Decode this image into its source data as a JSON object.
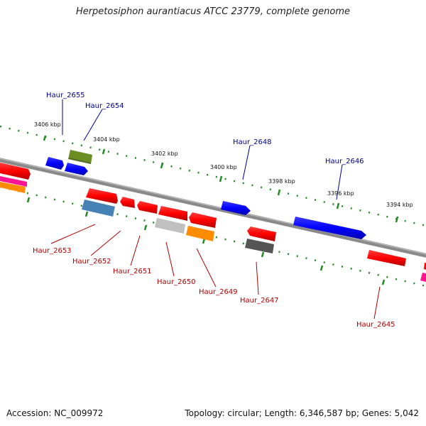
{
  "title": "Herpetosiphon aurantiacus ATCC 23779, complete genome",
  "footer": {
    "accession": "Accession: NC_009972",
    "info": "Topology: circular; Length: 6,346,587 bp; Genes: 5,042"
  },
  "scale": {
    "labels": [
      "3406 kbp",
      "3404 kbp",
      "3402 kbp",
      "3400 kbp",
      "3398 kbp",
      "3396 kbp",
      "3394 kbp"
    ]
  },
  "genes_forward": [
    {
      "name": "Haur_2655",
      "color": "#0000ff"
    },
    {
      "name": "Haur_2654",
      "color": "#0000ff"
    },
    {
      "name": "Haur_2648",
      "color": "#0000ff"
    },
    {
      "name": "Haur_2646",
      "color": "#0000ff"
    }
  ],
  "genes_reverse": [
    {
      "name": "Haur_2653",
      "color": "#4682b4"
    },
    {
      "name": "Haur_2652",
      "color": "#ff0000"
    },
    {
      "name": "Haur_2651",
      "color": "#ff0000"
    },
    {
      "name": "Haur_2650",
      "color": "#b0b0b0"
    },
    {
      "name": "Haur_2649",
      "color": "#ff8c00"
    },
    {
      "name": "Haur_2647",
      "color": "#555555"
    },
    {
      "name": "Haur_2645",
      "color": "#ff0000"
    }
  ],
  "colors": {
    "backbone": "#808080",
    "tick_dots": "#228b22",
    "fwd_label": "#00008b",
    "rev_label": "#b00000"
  }
}
